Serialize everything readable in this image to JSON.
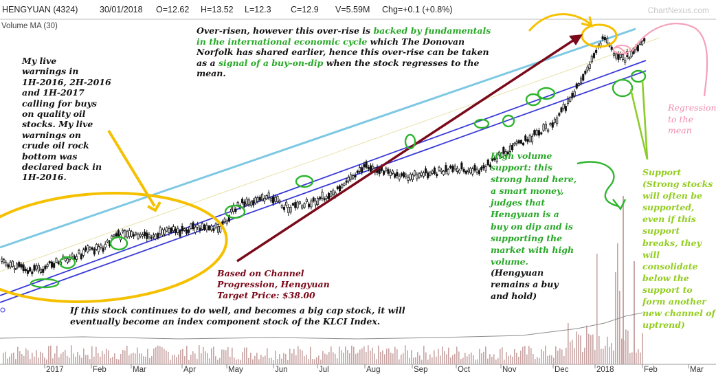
{
  "header": {
    "symbol": "HENGYUAN (4324)",
    "date": "30/01/2018",
    "open": "O=12.62",
    "high": "H=13.52",
    "low": "L=12.3",
    "close": "C=12.9",
    "volume": "V=5.59M",
    "change": "Chg=+0.1 (+0.8%)",
    "watermark": "ChartNexus.com"
  },
  "volume_label": "Volume MA (30)",
  "annotations": {
    "top_l1": "Over-risen, however this over-rise is ",
    "top_l1_green": "backed by fundamentals",
    "top_l2_green": "in the international economic cycle",
    "top_l2": " which The Donovan",
    "top_l3": "Norfolk has shared earlier, hence this over-rise can be taken",
    "top_l4a": "as a ",
    "top_l4_green": "signal of a buy-on-dip",
    "top_l4b": " when the stock regresses to the",
    "top_l5": "mean.",
    "live_warnings": "My live\nwarnings in\n1H-2016, 2H-2016\nand 1H-2017\ncalling for buys\non quality oil\nstocks. My live\nwarnings on\ncrude oil rock\nbottom was\ndeclared back in\n1H-2016.",
    "target": "Based on Channel\nProgression, Hengyuan\nTarget Price: $38.00",
    "index": "If this stock continues to do well, and becomes a big cap stock, it will\neventually become an index component stock of the KLCI Index.",
    "high_volume": "High volume\nsupport: this\nstrong hand here,\na smart money,\njudges that\nHengyuan is a\nbuy on dip and is\nsupporting the\nmarket with high\nvolume.",
    "hold": "(Hengyuan\nremains a buy\nand hold)",
    "regression": "Regression\nto the\nmean",
    "support": "Support\n(Strong stocks\nwill often be\nsupported,\neven if this\nsupport\nbreaks, they\nwill\nconsolidate\nbelow the\nsupport to\nform another\nnew channel of\nuptrend)"
  },
  "colors": {
    "candle": "#111111",
    "upper_channel": "#7ec8e3",
    "lower_channel": "#3a3ad8",
    "mean_line": "#e8e2a8",
    "volume_bar": "#c8a4a4",
    "volume_ma": "#8c8c8c",
    "yellow": "#f5c000",
    "green": "#2db52d",
    "lime": "#8dcc2a",
    "maroon": "#7a0a1a",
    "pink": "#f4a0b8",
    "dark_text": "#111111",
    "green_text": "#27a827",
    "lime_text": "#93cd20",
    "pink_text": "#f08cb0"
  },
  "chart_data": {
    "type": "candlestick",
    "x_tick_labels": [
      "2017",
      "Feb",
      "Mar",
      "Apr",
      "May",
      "Jun",
      "Jul",
      "Aug",
      "Sep",
      "Oct",
      "Nov",
      "Dec",
      "2018",
      "Feb",
      "Mar"
    ],
    "series": [
      {
        "name": "HENGYUAN (4324)",
        "x": [
          "2017-01-02",
          "2017-01-16",
          "2017-02-01",
          "2017-02-15",
          "2017-03-01",
          "2017-03-15",
          "2017-04-01",
          "2017-04-15",
          "2017-05-01",
          "2017-05-15",
          "2017-06-01",
          "2017-06-15",
          "2017-07-01",
          "2017-07-15",
          "2017-08-01",
          "2017-08-15",
          "2017-09-01",
          "2017-09-15",
          "2017-10-01",
          "2017-10-15",
          "2017-11-01",
          "2017-11-15",
          "2017-12-01",
          "2017-12-15",
          "2018-01-02",
          "2018-01-15",
          "2018-01-30"
        ],
        "close": [
          1.0,
          1.4,
          1.9,
          2.2,
          3.0,
          2.8,
          3.1,
          3.2,
          3.2,
          4.5,
          4.9,
          4.3,
          4.6,
          5.1,
          6.4,
          6.2,
          5.9,
          6.1,
          6.3,
          6.2,
          7.2,
          7.9,
          8.5,
          10.3,
          13.0,
          11.9,
          12.9
        ]
      }
    ],
    "volume_ma_period": 30,
    "grid": false,
    "legend": "none"
  }
}
